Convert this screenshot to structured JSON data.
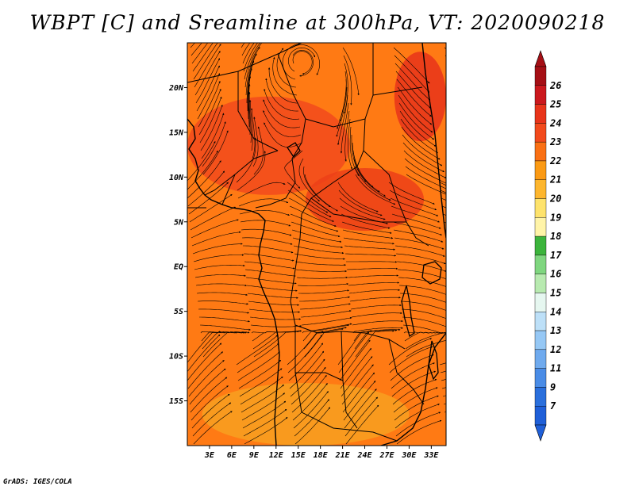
{
  "title": "WBPT [C] and Sreamline at 300hPa, VT: 2020090218",
  "credit": "GrADS: IGES/COLA",
  "map": {
    "lon_range": [
      0,
      35
    ],
    "lat_range": [
      -20,
      25
    ],
    "lat_ticks": [
      {
        "value": 20,
        "label": "20N"
      },
      {
        "value": 15,
        "label": "15N"
      },
      {
        "value": 10,
        "label": "10N"
      },
      {
        "value": 5,
        "label": "5N"
      },
      {
        "value": 0,
        "label": "EQ"
      },
      {
        "value": -5,
        "label": "5S"
      },
      {
        "value": -10,
        "label": "10S"
      },
      {
        "value": -15,
        "label": "15S"
      }
    ],
    "lon_ticks": [
      {
        "value": 3,
        "label": "3E"
      },
      {
        "value": 6,
        "label": "6E"
      },
      {
        "value": 9,
        "label": "9E"
      },
      {
        "value": 12,
        "label": "12E"
      },
      {
        "value": 15,
        "label": "15E"
      },
      {
        "value": 18,
        "label": "18E"
      },
      {
        "value": 21,
        "label": "21E"
      },
      {
        "value": 24,
        "label": "24E"
      },
      {
        "value": 27,
        "label": "27E"
      },
      {
        "value": 30,
        "label": "30E"
      },
      {
        "value": 33,
        "label": "33E"
      }
    ],
    "background_color": "#ff7a14",
    "regions": [
      {
        "name": "warm-band-north",
        "level": 24,
        "color": "#f24a1c",
        "lon": [
          0,
          22
        ],
        "lat": [
          8,
          19
        ]
      },
      {
        "name": "warm-patch-central-east",
        "level": 24,
        "color": "#ec3f18",
        "lon": [
          16,
          32
        ],
        "lat": [
          4,
          11
        ]
      },
      {
        "name": "warm-patch-northeast",
        "level": 25,
        "color": "#e8341a",
        "lon": [
          28,
          35
        ],
        "lat": [
          14,
          24
        ]
      },
      {
        "name": "cool-band-south",
        "level": 21,
        "color": "#f8a020",
        "lon": [
          2,
          30
        ],
        "lat": [
          -20,
          -13
        ]
      }
    ]
  },
  "colorbar": {
    "labels": [
      "26",
      "25",
      "24",
      "23",
      "22",
      "21",
      "20",
      "19",
      "18",
      "17",
      "16",
      "15",
      "14",
      "13",
      "12",
      "11",
      "9",
      "7"
    ],
    "colors": [
      "#a50f15",
      "#cb181d",
      "#e8341a",
      "#f24a1c",
      "#fa7014",
      "#fb9a14",
      "#fdb62e",
      "#fee36c",
      "#fff4a8",
      "#3cb43c",
      "#7fd67f",
      "#b8eab0",
      "#e6f7f0",
      "#bde0f8",
      "#96c8f5",
      "#6faaee",
      "#4a8ce6",
      "#2a6fdc",
      "#1f5fd8"
    ]
  }
}
